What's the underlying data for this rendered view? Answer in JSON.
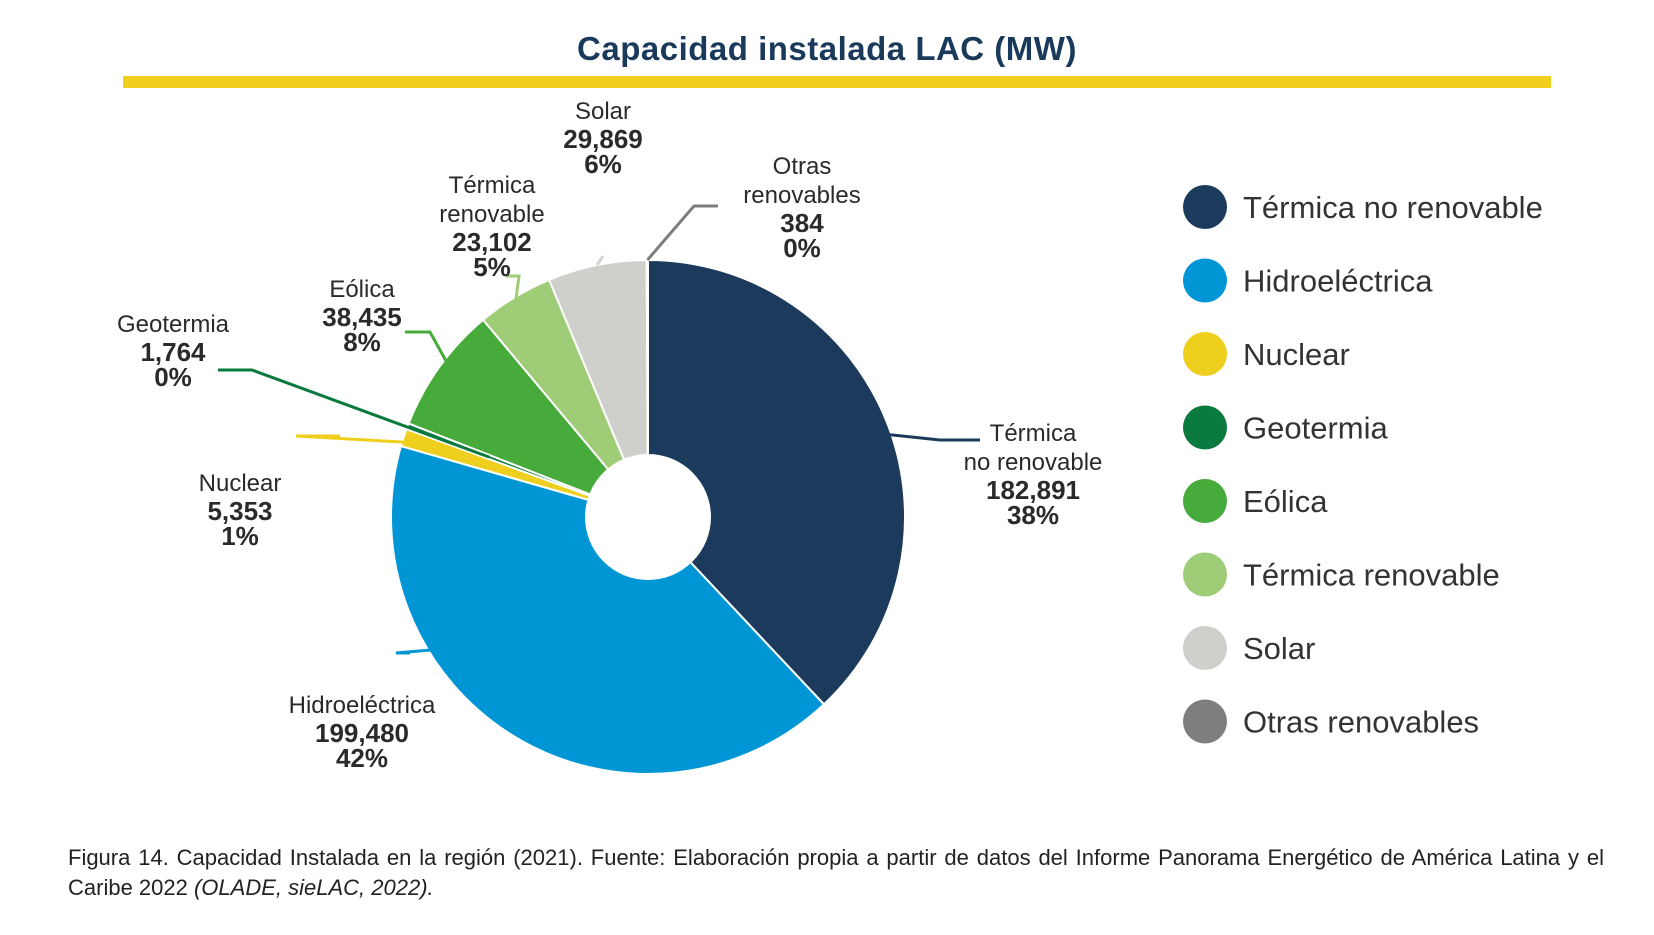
{
  "chart_data": {
    "type": "pie",
    "title": "Capacidad instalada LAC (MW)",
    "slices": [
      {
        "name": "Térmica no renovable",
        "label_lines": [
          "Térmica",
          "no renovable"
        ],
        "value": 182891,
        "value_text": "182,891",
        "pct_text": "38%",
        "color": "#1b3a5c"
      },
      {
        "name": "Hidroeléctrica",
        "label_lines": [
          "Hidroeléctrica"
        ],
        "value": 199480,
        "value_text": "199,480",
        "pct_text": "42%",
        "color": "#0096d6"
      },
      {
        "name": "Nuclear",
        "label_lines": [
          "Nuclear"
        ],
        "value": 5353,
        "value_text": "5,353",
        "pct_text": "1%",
        "color": "#efcf1d"
      },
      {
        "name": "Geotermia",
        "label_lines": [
          "Geotermia"
        ],
        "value": 1764,
        "value_text": "1,764",
        "pct_text": "0%",
        "color": "#0a7a3e"
      },
      {
        "name": "Eólica",
        "label_lines": [
          "Eólica"
        ],
        "value": 38435,
        "value_text": "38,435",
        "pct_text": "8%",
        "color": "#46ab3a"
      },
      {
        "name": "Térmica renovable",
        "label_lines": [
          "Térmica",
          "renovable"
        ],
        "value": 23102,
        "value_text": "23,102",
        "pct_text": "5%",
        "color": "#9fcd77"
      },
      {
        "name": "Solar",
        "label_lines": [
          "Solar"
        ],
        "value": 29869,
        "value_text": "29,869",
        "pct_text": "6%",
        "color": "#cfcfcb"
      },
      {
        "name": "Otras renovables",
        "label_lines": [
          "Otras",
          "renovables"
        ],
        "value": 384,
        "value_text": "384",
        "pct_text": "0%",
        "color": "#7e7e7e"
      }
    ],
    "legend": [
      "Térmica no renovable",
      "Hidroeléctrica",
      "Nuclear",
      "Geotermia",
      "Eólica",
      "Térmica renovable",
      "Solar",
      "Otras renovables"
    ],
    "legend_position": "right",
    "donut": true
  },
  "caption": {
    "text": "Figura 14. Capacidad Instalada en la región (2021). Fuente: Elaboración propia a partir de datos del Informe Panorama Energético de América Latina y el Caribe 2022 ",
    "citation": "(OLADE, sieLAC, 2022)."
  }
}
